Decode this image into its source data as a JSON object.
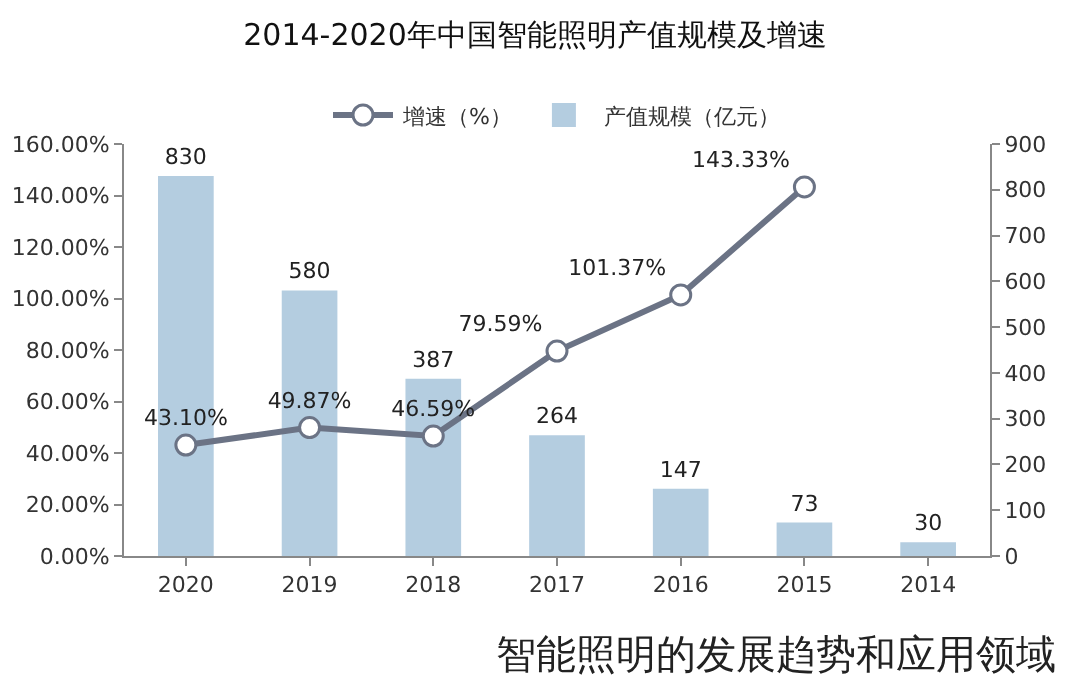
{
  "chart_data": {
    "type": "bar",
    "title": "2014-2020年中国智能照明产值规模及增速",
    "categories": [
      "2020",
      "2019",
      "2018",
      "2017",
      "2016",
      "2015",
      "2014"
    ],
    "series": [
      {
        "name": "增速（%）",
        "type": "line",
        "color": "#6b7385",
        "marker": "circle",
        "values": [
          43.1,
          49.87,
          46.59,
          79.59,
          101.37,
          143.33,
          null
        ],
        "value_labels": [
          "43.10%",
          "49.87%",
          "46.59%",
          "79.59%",
          "101.37%",
          "143.33%",
          null
        ]
      },
      {
        "name": "产值规模（亿元）",
        "axis": "y2",
        "color": "#b4cde0",
        "values": [
          830,
          580,
          387,
          264,
          147,
          73,
          30
        ],
        "value_labels": [
          "830",
          "580",
          "387",
          "264",
          "147",
          "73",
          "30"
        ]
      }
    ],
    "ylim": [
      0,
      160
    ],
    "yticks": [
      {
        "value": 0,
        "label": "0.00%"
      },
      {
        "value": 20,
        "label": "20.00%"
      },
      {
        "value": 40,
        "label": "40.00%"
      },
      {
        "value": 60,
        "label": "60.00%"
      },
      {
        "value": 80,
        "label": "80.00%"
      },
      {
        "value": 100,
        "label": "100.00%"
      },
      {
        "value": 120,
        "label": "120.00%"
      },
      {
        "value": 140,
        "label": "140.00%"
      },
      {
        "value": 160,
        "label": "160.00%"
      }
    ],
    "y2lim": [
      0,
      900
    ],
    "y2ticks": [
      0,
      100,
      200,
      300,
      400,
      500,
      600,
      700,
      800,
      900
    ],
    "grid": false,
    "legend": "top",
    "annotations": [
      "智能照明的发展趋势和应用领域"
    ]
  }
}
